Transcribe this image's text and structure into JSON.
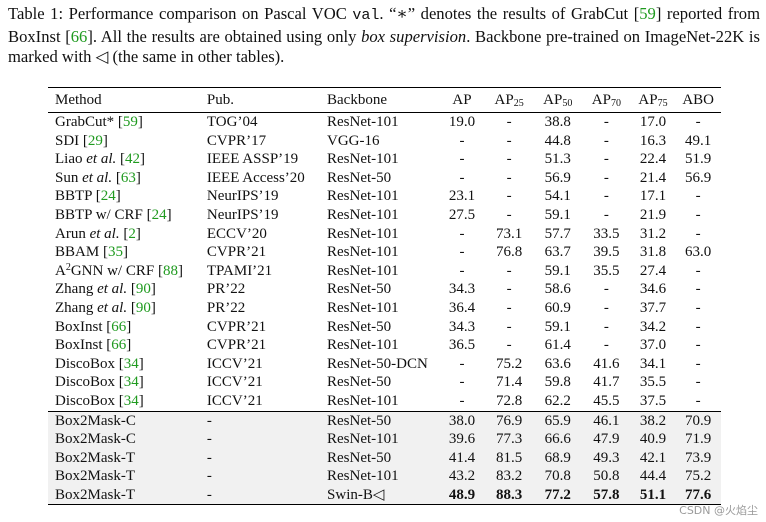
{
  "caption": {
    "label": "Table 1:",
    "p1": " Performance comparison on Pascal VOC ",
    "code": "val",
    "p2": ". “∗” denotes the results of GrabCut [",
    "ref1": "59",
    "p3": "] reported from BoxInst [",
    "ref2": "66",
    "p4": "]. All the results are obtained using only ",
    "emph": "box supervision",
    "p5": ". Backbone pre-trained on ImageNet-22K is marked with ◁ (the same in other tables)."
  },
  "headers": {
    "method": "Method",
    "pub": "Pub.",
    "backbone": "Backbone",
    "ap": "AP",
    "ap25_base": "AP",
    "ap25_sub": "25",
    "ap50_base": "AP",
    "ap50_sub": "50",
    "ap70_base": "AP",
    "ap70_sub": "70",
    "ap75_base": "AP",
    "ap75_sub": "75",
    "abo": "ABO"
  },
  "rows": [
    {
      "method": "GrabCut*",
      "ref": "59",
      "pub": "TOG’04",
      "backbone": "ResNet-101",
      "ap": "19.0",
      "ap25": "-",
      "ap50": "38.8",
      "ap70": "-",
      "ap75": "17.0",
      "abo": "-"
    },
    {
      "method": "SDI",
      "ref": "29",
      "pub": "CVPR’17",
      "backbone": "VGG-16",
      "ap": "-",
      "ap25": "-",
      "ap50": "44.8",
      "ap70": "-",
      "ap75": "16.3",
      "abo": "49.1"
    },
    {
      "method": "Liao ",
      "em": "et al.",
      "ref": "42",
      "pub": "IEEE ASSP’19",
      "backbone": "ResNet-101",
      "ap": "-",
      "ap25": "-",
      "ap50": "51.3",
      "ap70": "-",
      "ap75": "22.4",
      "abo": "51.9"
    },
    {
      "method": "Sun ",
      "em": "et al.",
      "ref": "63",
      "pub": "IEEE Access’20",
      "backbone": "ResNet-50",
      "ap": "-",
      "ap25": "-",
      "ap50": "56.9",
      "ap70": "-",
      "ap75": "21.4",
      "abo": "56.9"
    },
    {
      "method": "BBTP",
      "ref": "24",
      "pub": "NeurIPS’19",
      "backbone": "ResNet-101",
      "ap": "23.1",
      "ap25": "-",
      "ap50": "54.1",
      "ap70": "-",
      "ap75": "17.1",
      "abo": "-"
    },
    {
      "method": "BBTP w/ CRF",
      "ref": "24",
      "pub": "NeurIPS’19",
      "backbone": "ResNet-101",
      "ap": "27.5",
      "ap25": "-",
      "ap50": "59.1",
      "ap70": "-",
      "ap75": "21.9",
      "abo": "-"
    },
    {
      "method": "Arun ",
      "em": "et al.",
      "ref": "2",
      "pub": "ECCV’20",
      "backbone": "ResNet-101",
      "ap": "-",
      "ap25": "73.1",
      "ap50": "57.7",
      "ap70": "33.5",
      "ap75": "31.2",
      "abo": "-"
    },
    {
      "method": "BBAM",
      "ref": "35",
      "pub": "CVPR’21",
      "backbone": "ResNet-101",
      "ap": "-",
      "ap25": "76.8",
      "ap50": "63.7",
      "ap70": "39.5",
      "ap75": "31.8",
      "abo": "63.0"
    },
    {
      "method": "A",
      "sup": "2",
      "method2": "GNN w/ CRF",
      "ref": "88",
      "pub": "TPAMI’21",
      "backbone": "ResNet-101",
      "ap": "-",
      "ap25": "-",
      "ap50": "59.1",
      "ap70": "35.5",
      "ap75": "27.4",
      "abo": "-"
    },
    {
      "method": "Zhang ",
      "em": "et al.",
      "ref": "90",
      "pub": "PR’22",
      "backbone": "ResNet-50",
      "ap": "34.3",
      "ap25": "-",
      "ap50": "58.6",
      "ap70": "-",
      "ap75": "34.6",
      "abo": "-"
    },
    {
      "method": "Zhang ",
      "em": "et al.",
      "ref": "90",
      "pub": "PR’22",
      "backbone": "ResNet-101",
      "ap": "36.4",
      "ap25": "-",
      "ap50": "60.9",
      "ap70": "-",
      "ap75": "37.7",
      "abo": "-"
    },
    {
      "method": "BoxInst",
      "ref": "66",
      "pub": "CVPR’21",
      "backbone": "ResNet-50",
      "ap": "34.3",
      "ap25": "-",
      "ap50": "59.1",
      "ap70": "-",
      "ap75": "34.2",
      "abo": "-"
    },
    {
      "method": "BoxInst",
      "ref": "66",
      "pub": "CVPR’21",
      "backbone": "ResNet-101",
      "ap": "36.5",
      "ap25": "-",
      "ap50": "61.4",
      "ap70": "-",
      "ap75": "37.0",
      "abo": "-"
    },
    {
      "method": "DiscoBox",
      "ref": "34",
      "pub": "ICCV’21",
      "backbone": "ResNet-50-DCN",
      "ap": "-",
      "ap25": "75.2",
      "ap50": "63.6",
      "ap70": "41.6",
      "ap75": "34.1",
      "abo": "-"
    },
    {
      "method": "DiscoBox",
      "ref": "34",
      "pub": "ICCV’21",
      "backbone": "ResNet-50",
      "ap": "-",
      "ap25": "71.4",
      "ap50": "59.8",
      "ap70": "41.7",
      "ap75": "35.5",
      "abo": "-"
    },
    {
      "method": "DiscoBox",
      "ref": "34",
      "pub": "ICCV’21",
      "backbone": "ResNet-101",
      "ap": "-",
      "ap25": "72.8",
      "ap50": "62.2",
      "ap70": "45.5",
      "ap75": "37.5",
      "abo": "-"
    },
    {
      "method": "Box2Mask-C",
      "pub": "-",
      "backbone": "ResNet-50",
      "ap": "38.0",
      "ap25": "76.9",
      "ap50": "65.9",
      "ap70": "46.1",
      "ap75": "38.2",
      "abo": "70.9"
    },
    {
      "method": "Box2Mask-C",
      "pub": "-",
      "backbone": "ResNet-101",
      "ap": "39.6",
      "ap25": "77.3",
      "ap50": "66.6",
      "ap70": "47.9",
      "ap75": "40.9",
      "abo": "71.9"
    },
    {
      "method": "Box2Mask-T",
      "pub": "-",
      "backbone": "ResNet-50",
      "ap": "41.4",
      "ap25": "81.5",
      "ap50": "68.9",
      "ap70": "49.3",
      "ap75": "42.1",
      "abo": "73.9"
    },
    {
      "method": "Box2Mask-T",
      "pub": "-",
      "backbone": "ResNet-101",
      "ap": "43.2",
      "ap25": "83.2",
      "ap50": "70.8",
      "ap70": "50.8",
      "ap75": "44.4",
      "abo": "75.2"
    },
    {
      "method": "Box2Mask-T",
      "pub": "-",
      "backbone": "Swin-B◁",
      "ap": "48.9",
      "ap25": "88.3",
      "ap50": "77.2",
      "ap70": "57.8",
      "ap75": "51.1",
      "abo": "77.6"
    }
  ],
  "watermark": "CSDN @火焰尘"
}
